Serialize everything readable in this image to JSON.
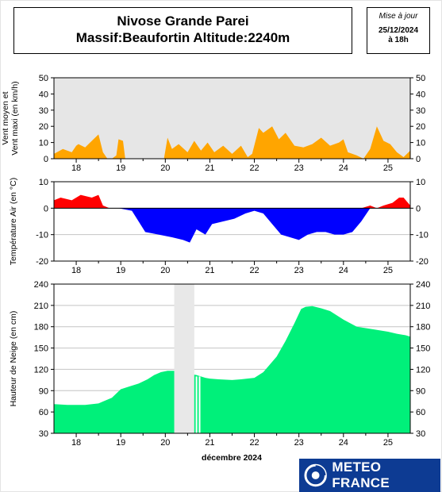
{
  "header": {
    "title_line1": "Nivose Grande Parei",
    "title_line2": "Massif:Beaufortin Altitude:2240m",
    "update_label": "Mise à jour",
    "update_date": "25/12/2024",
    "update_time": "à 18h"
  },
  "brand": {
    "name": "METEO FRANCE"
  },
  "colors": {
    "wind": "#ffa500",
    "temp_pos": "#ff0000",
    "temp_neg": "#0000ff",
    "snow": "#00f07a",
    "panel_bg": "#e6e6e6",
    "missing": "#e8e8e8"
  },
  "x_axis": {
    "ticks": [
      "18",
      "19",
      "20",
      "21",
      "22",
      "23",
      "24",
      "25"
    ],
    "month_label": "décembre 2024"
  },
  "chart_data": [
    {
      "type": "area",
      "name": "wind",
      "ylabel_line1": "Vent moyen et",
      "ylabel_line2": "Vent maxi (en km/h)",
      "ylim": [
        0,
        50
      ],
      "yticks": [
        0,
        10,
        20,
        30,
        40,
        50
      ],
      "grid": false,
      "x": [
        17.5,
        17.7,
        17.9,
        18.0,
        18.05,
        18.2,
        18.35,
        18.5,
        18.6,
        18.7,
        18.8,
        18.9,
        18.95,
        19.05,
        19.1,
        19.2,
        19.3,
        19.6,
        19.97,
        20.05,
        20.15,
        20.3,
        20.5,
        20.65,
        20.8,
        20.95,
        21.1,
        21.3,
        21.5,
        21.7,
        21.85,
        21.95,
        22.1,
        22.2,
        22.4,
        22.55,
        22.7,
        22.9,
        23.1,
        23.3,
        23.5,
        23.7,
        23.9,
        24.0,
        24.1,
        24.3,
        24.45,
        24.6,
        24.75,
        24.9,
        25.05,
        25.2,
        25.35,
        25.5
      ],
      "y": [
        3,
        6,
        4,
        8,
        9,
        7,
        11,
        15,
        4,
        0,
        0,
        2,
        12,
        11,
        0,
        0,
        0,
        0,
        0,
        13,
        6,
        9,
        4,
        11,
        5,
        10,
        4,
        8,
        3,
        8,
        1,
        3,
        19,
        16,
        20,
        12,
        16,
        8,
        7,
        9,
        13,
        8,
        10,
        12,
        4,
        2,
        0,
        6,
        20,
        11,
        9,
        4,
        1,
        5
      ]
    },
    {
      "type": "area",
      "name": "temperature",
      "ylabel": "Température Air (en °C)",
      "ylim": [
        -20,
        10
      ],
      "yticks": [
        -20,
        -10,
        0,
        10
      ],
      "grid": true,
      "x": [
        17.5,
        17.65,
        17.9,
        18.1,
        18.35,
        18.5,
        18.6,
        18.75,
        18.95,
        19.25,
        19.55,
        19.85,
        20.15,
        20.4,
        20.55,
        20.7,
        20.9,
        21.05,
        21.3,
        21.55,
        21.8,
        22.0,
        22.2,
        22.4,
        22.6,
        22.8,
        23.0,
        23.2,
        23.4,
        23.6,
        23.8,
        24.0,
        24.2,
        24.4,
        24.6,
        24.75,
        24.9,
        25.1,
        25.25,
        25.35,
        25.5
      ],
      "y": [
        3,
        4,
        3,
        5,
        4,
        5,
        1,
        0,
        0,
        -1,
        -9,
        -10,
        -11,
        -12,
        -13,
        -8,
        -10,
        -6,
        -5,
        -4,
        -2,
        -1,
        -2,
        -6,
        -10,
        -11,
        -12,
        -10,
        -9,
        -9,
        -10,
        -10,
        -9,
        -5,
        1,
        0,
        1,
        2,
        4,
        4,
        1
      ]
    },
    {
      "type": "area",
      "name": "snow_depth",
      "ylabel": "Hauteur de Neige (en cm)",
      "ylim": [
        30,
        240
      ],
      "yticks": [
        30,
        60,
        90,
        120,
        150,
        180,
        210,
        240
      ],
      "grid": true,
      "missing_interval": [
        20.2,
        20.65
      ],
      "x": [
        17.5,
        17.8,
        18.2,
        18.5,
        18.8,
        19.0,
        19.2,
        19.4,
        19.6,
        19.75,
        19.9,
        20.05,
        20.2,
        20.7,
        20.8,
        20.9,
        21.0,
        21.2,
        21.5,
        21.7,
        22.0,
        22.2,
        22.5,
        22.7,
        22.9,
        23.05,
        23.15,
        23.3,
        23.5,
        23.7,
        24.0,
        24.3,
        24.5,
        24.7,
        25.0,
        25.2,
        25.4,
        25.5
      ],
      "y": [
        71,
        70,
        70,
        72,
        80,
        92,
        96,
        100,
        106,
        112,
        116,
        118,
        118,
        112,
        110,
        108,
        107,
        106,
        105,
        106,
        108,
        116,
        138,
        160,
        185,
        205,
        208,
        209,
        206,
        202,
        190,
        180,
        178,
        176,
        173,
        170,
        168,
        166
      ]
    }
  ]
}
